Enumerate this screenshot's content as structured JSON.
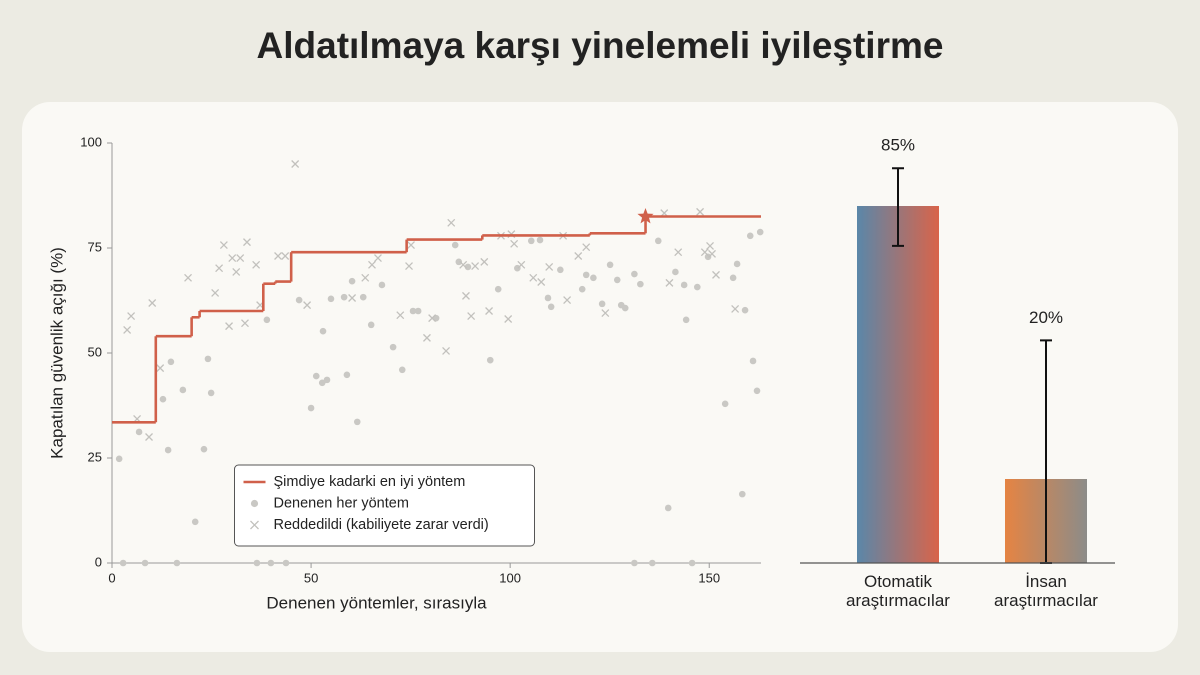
{
  "title": "Aldatılmaya karşı yinelemeli iyileştirme",
  "chart_data": [
    {
      "type": "scatter",
      "x_label": "Denenen yöntemler, sırasıyla",
      "y_label": "Kapatılan güvenlik açığı (%)",
      "xlim": [
        0,
        163
      ],
      "xticks": [
        0,
        50,
        100,
        150
      ],
      "ylim": [
        0,
        100
      ],
      "yticks": [
        0,
        25,
        50,
        75,
        100
      ],
      "legend": "lower center",
      "series": [
        {
          "name": "Şimdiye kadarki en iyi yöntem",
          "style": "step",
          "color": "#d0604a",
          "x": [
            0,
            11,
            20,
            22,
            38,
            41,
            45,
            74,
            93,
            120,
            134
          ],
          "values": [
            33.5,
            54,
            58.5,
            60,
            66.5,
            67,
            74,
            77,
            78,
            78.5,
            82.5
          ]
        },
        {
          "name": "Denenen her yöntem",
          "style": "circle",
          "color": "#c9c8c4",
          "x": [
            1.8,
            6.8,
            14.1,
            14.8,
            12.8,
            17.8,
            20.9,
            23.1,
            24.1,
            24.9,
            38.9,
            47,
            50,
            51.3,
            52.8,
            53,
            54,
            55,
            58.3,
            59,
            60.3,
            61.6,
            63.1,
            65.1,
            67.8,
            70.6,
            72.9,
            75.6,
            76.9,
            81.4,
            86.2,
            87.1,
            89.4,
            95,
            97,
            101.8,
            105.3,
            107.5,
            109.5,
            110.3,
            112.6,
            118.1,
            119.1,
            120.9,
            123.1,
            125.1,
            126.9,
            127.9,
            128.9,
            131.2,
            132.7,
            137.2,
            139.7,
            141.5,
            143.7,
            144.2,
            147,
            149.7,
            154,
            156,
            157,
            158.3,
            159,
            160.3,
            161,
            162,
            162.8,
            2.8,
            8.3,
            16.3,
            36.4,
            39.9,
            43.7,
            131.2,
            135.7,
            145.7
          ],
          "values": [
            24.8,
            31.2,
            26.9,
            47.9,
            39,
            41.2,
            9.8,
            27.1,
            48.6,
            40.5,
            57.9,
            62.6,
            36.9,
            44.5,
            42.9,
            55.2,
            43.6,
            62.9,
            63.3,
            44.8,
            67.1,
            33.6,
            63.3,
            56.7,
            66.2,
            51.4,
            46,
            60,
            60,
            58.3,
            75.7,
            71.7,
            70.5,
            48.3,
            65.2,
            70.2,
            76.7,
            76.9,
            63.1,
            61,
            69.8,
            65.2,
            68.6,
            67.9,
            61.7,
            71,
            67.4,
            61.4,
            60.7,
            68.8,
            66.4,
            76.7,
            13.1,
            69.3,
            66.2,
            57.9,
            65.7,
            72.9,
            37.9,
            67.9,
            71.2,
            16.4,
            60.2,
            77.9,
            48.1,
            41,
            78.8,
            0,
            0,
            0,
            0,
            0,
            0,
            0,
            0,
            0
          ]
        },
        {
          "name": "Reddedildi (kabiliyete zarar verdi)",
          "style": "cross",
          "color": "#c2c1bd",
          "x": [
            3.8,
            4.8,
            6.3,
            9.3,
            10.1,
            12.1,
            19.1,
            26.9,
            25.9,
            28.1,
            29.4,
            30.2,
            31.2,
            32.2,
            33.4,
            33.9,
            36.2,
            37.2,
            41.7,
            43.5,
            46,
            49,
            60.3,
            63.6,
            65.3,
            66.8,
            72.4,
            74.6,
            75.1,
            79.1,
            80.4,
            83.9,
            85.2,
            88.2,
            88.9,
            91.2,
            90.2,
            93.5,
            94.7,
            97.7,
            99.5,
            100.3,
            101,
            102.8,
            105.8,
            107.8,
            109.8,
            113.3,
            114.3,
            117.1,
            119.1,
            123.9,
            138.7,
            142.2,
            147.7,
            148.9,
            150.2,
            151.7,
            150.7,
            156.5,
            140
          ],
          "values": [
            55.5,
            58.8,
            34.3,
            30,
            61.9,
            46.4,
            67.9,
            70.2,
            64.3,
            75.7,
            56.4,
            72.6,
            69.3,
            72.6,
            57.1,
            76.4,
            71,
            61.4,
            73.1,
            73.1,
            95,
            61.4,
            63.1,
            67.9,
            71,
            72.6,
            59,
            70.7,
            75.7,
            53.6,
            58.3,
            50.5,
            81,
            71,
            63.6,
            70.7,
            58.8,
            71.7,
            60,
            77.9,
            58.1,
            78.3,
            76,
            71,
            67.9,
            66.9,
            70.5,
            77.9,
            62.6,
            73.1,
            75.2,
            59.5,
            83.3,
            74,
            83.6,
            74,
            75.5,
            68.6,
            73.6,
            60.5,
            66.7
          ]
        }
      ]
    },
    {
      "type": "bar",
      "categories": [
        "Otomatik araştırmacılar",
        "İnsan araştırmacılar"
      ],
      "values": [
        85,
        20
      ],
      "value_labels": [
        "85%",
        "20%"
      ],
      "error_high": [
        9,
        33
      ],
      "error_low": [
        9.5,
        20
      ],
      "ylim": [
        0,
        100
      ],
      "colors": [
        [
          "#5a87a9",
          "#d9644a"
        ],
        [
          "#e58443",
          "#8c8c89"
        ]
      ]
    }
  ]
}
